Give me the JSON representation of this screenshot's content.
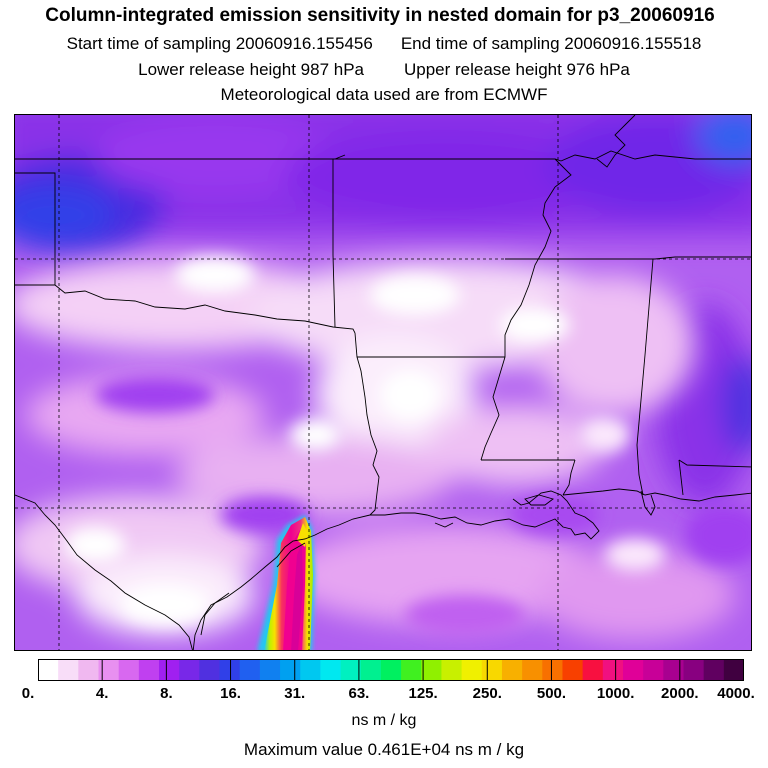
{
  "header": {
    "title": "Column-integrated emission sensitivity in nested domain for p3_20060916",
    "start_label": "Start time of sampling 20060916.155456",
    "end_label": "End time of sampling 20060916.155518",
    "lower_label": "Lower release height  987 hPa",
    "upper_label": "Upper release height  976 hPa",
    "met_label": "Meteorological data used are from ECMWF"
  },
  "colorbar": {
    "tick_labels": [
      "0.",
      "4.",
      "8.",
      "16.",
      "31.",
      "63.",
      "125.",
      "250.",
      "500.",
      "1000.",
      "2000.",
      "4000."
    ],
    "colors": [
      "#ffffff",
      "#f8ddf8",
      "#f0b8f0",
      "#e890f0",
      "#d868f0",
      "#c040f0",
      "#a020f0",
      "#7828e8",
      "#5030e0",
      "#3040e8",
      "#2060f0",
      "#1080f0",
      "#00a0f0",
      "#00c8f0",
      "#00e8f0",
      "#00f0c0",
      "#00f090",
      "#00f060",
      "#40f020",
      "#90f000",
      "#c8f000",
      "#f0f000",
      "#f8d800",
      "#f8b000",
      "#f89000",
      "#f87000",
      "#f84000",
      "#f81040",
      "#f01080",
      "#e00098",
      "#c80098",
      "#a80090",
      "#880080",
      "#600060",
      "#400040"
    ],
    "unit": "ns m / kg"
  },
  "footer": {
    "max_value_label": "Maximum value  0.461E+04 ns m / kg"
  },
  "map": {
    "background_color": "#b060f0",
    "plume_colors": [
      "#20c8f0",
      "#c0f000",
      "#f8e000",
      "#f83060",
      "#f00090",
      "#d00098"
    ]
  }
}
